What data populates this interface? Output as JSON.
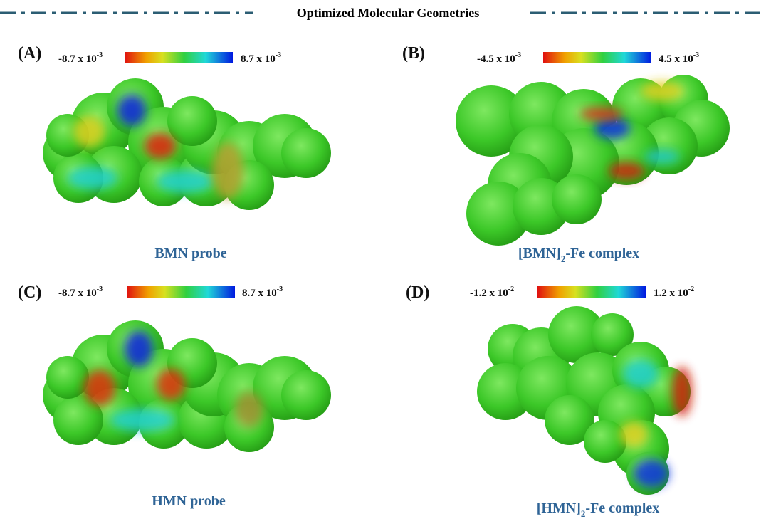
{
  "header": {
    "title": "Optimized Molecular Geometries"
  },
  "panels": [
    {
      "label": "(A)",
      "scale": {
        "min": {
          "base": "-8.7 x 10",
          "exponent": "-3"
        },
        "max": {
          "base": "8.7 x 10",
          "exponent": "-3"
        }
      },
      "caption": {
        "text": "BMN probe"
      }
    },
    {
      "label": "(B)",
      "scale": {
        "min": {
          "base": "-4.5 x 10",
          "exponent": "-3"
        },
        "max": {
          "base": "4.5 x 10",
          "exponent": "-3"
        }
      },
      "caption": {
        "text": "[BMN]",
        "subscript": "2",
        "suffix": "-Fe complex"
      }
    },
    {
      "label": "(C)",
      "scale": {
        "min": {
          "base": "-8.7 x 10",
          "exponent": "-3"
        },
        "max": {
          "base": "8.7 x 10",
          "exponent": "-3"
        }
      },
      "caption": {
        "text": "HMN probe"
      }
    },
    {
      "label": "(D)",
      "scale": {
        "min": {
          "base": "-1.2 x 10",
          "exponent": "-2"
        },
        "max": {
          "base": "1.2 x 10",
          "exponent": "-2"
        }
      },
      "caption": {
        "text": "[HMN]",
        "subscript": "2",
        "suffix": "-Fe complex"
      }
    }
  ]
}
